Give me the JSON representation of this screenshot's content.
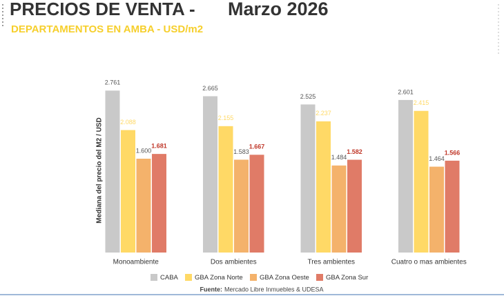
{
  "chart_data": {
    "type": "bar",
    "title": "PRECIOS DE VENTA -",
    "title_date": "Marzo 2026",
    "subtitle": "DEPARTAMENTOS EN AMBA - USD/m2",
    "y_label": "Mediana del precio del M2 / USD",
    "source_label": "Fuente:",
    "source": "Mercado Libre Inmuebles & UDESA",
    "categories": [
      "Monoambiente",
      "Dos ambientes",
      "Tres ambientes",
      "Cuatro o mas ambientes"
    ],
    "ylim": [
      0,
      3000
    ],
    "series": [
      {
        "name": "CABA",
        "color": "#c9c9c9",
        "label_color": "#555555",
        "values": [
          2761,
          2665,
          2525,
          2601
        ],
        "value_labels": [
          "2.761",
          "2.665",
          "2.525",
          "2.601"
        ]
      },
      {
        "name": "GBA Zona Norte",
        "color": "#ffd966",
        "label_color": "#ffd966",
        "values": [
          2088,
          2155,
          2237,
          2415
        ],
        "value_labels": [
          "2.088",
          "2.155",
          "2.237",
          "2.415"
        ]
      },
      {
        "name": "GBA Zona Oeste",
        "color": "#f4b26b",
        "label_color": "#555555",
        "values": [
          1600,
          1583,
          1484,
          1464
        ],
        "value_labels": [
          "1.600",
          "1.583",
          "1.484",
          "1.464"
        ]
      },
      {
        "name": "GBA Zona Sur",
        "color": "#e07b67",
        "label_color": "#c0392b",
        "values": [
          1681,
          1667,
          1582,
          1566
        ],
        "value_labels": [
          "1.681",
          "1.667",
          "1.582",
          "1.566"
        ]
      }
    ]
  }
}
